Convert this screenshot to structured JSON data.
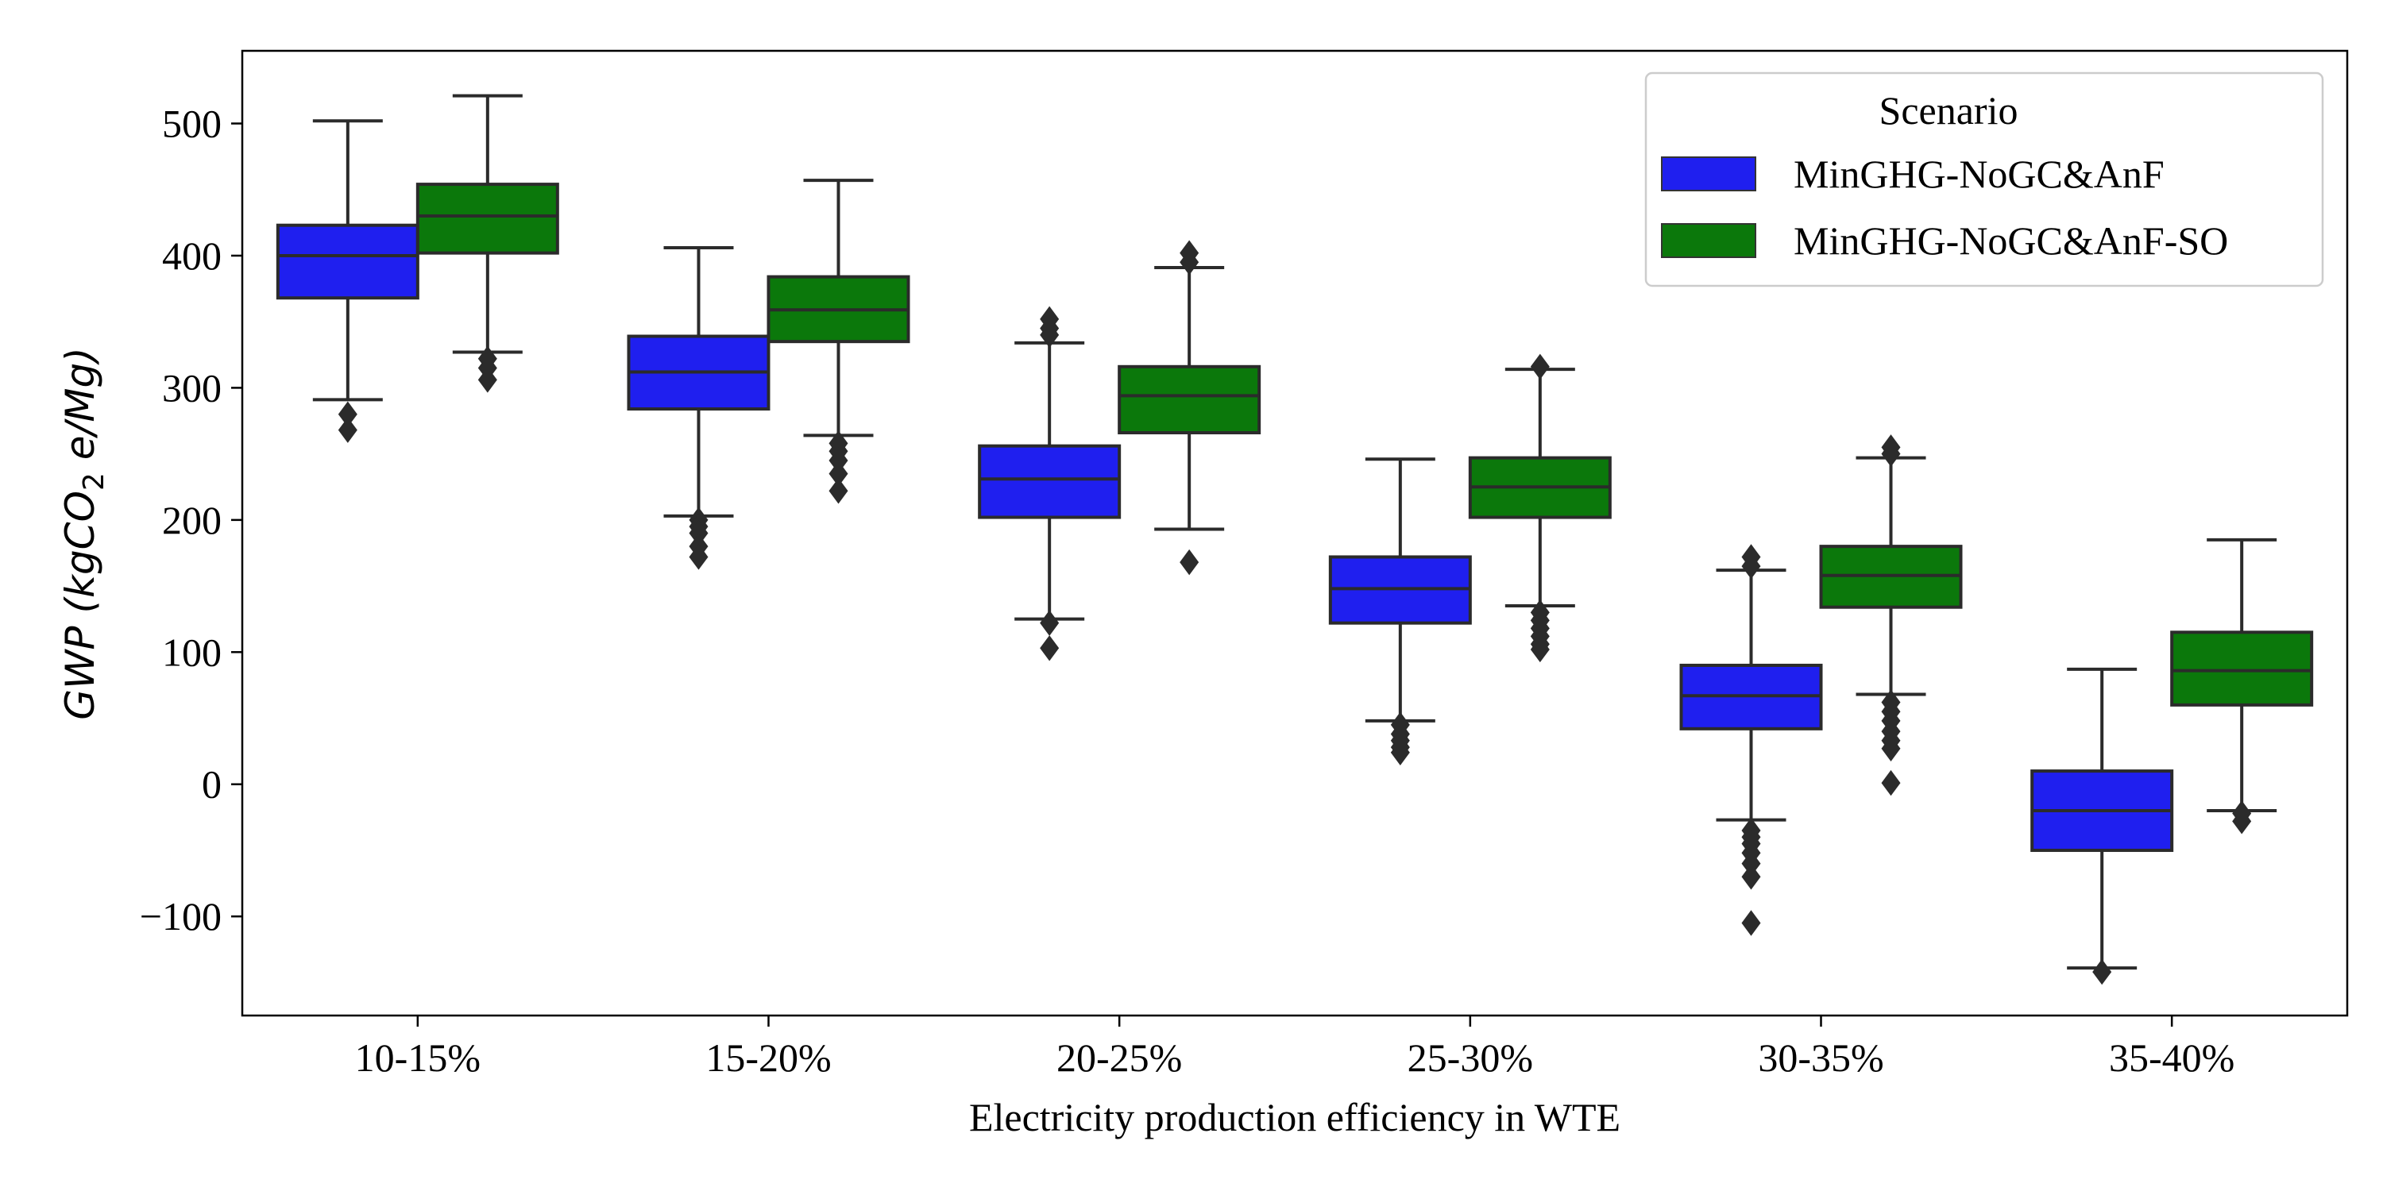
{
  "chart_data": {
    "type": "box",
    "xlabel": "Electricity production efficiency in WTE",
    "ylabel": {
      "italic_pre": "GWP (kgCO",
      "sub": "2",
      "italic_post": " e/Mg)"
    },
    "ylim": [
      -175,
      555
    ],
    "yticks": [
      500,
      400,
      300,
      200,
      100,
      0,
      -100
    ],
    "ytick_labels": [
      "500",
      "400",
      "300",
      "200",
      "100",
      "0",
      "−100"
    ],
    "categories": [
      "10-15%",
      "15-20%",
      "20-25%",
      "25-30%",
      "30-35%",
      "35-40%"
    ],
    "legend": {
      "title": "Scenario",
      "position": "top-right"
    },
    "series": [
      {
        "name": "MinGHG-NoGC&AnF",
        "color": "#1f1fef",
        "boxes": [
          {
            "whislo": 291,
            "q1": 368,
            "med": 400,
            "q3": 423,
            "whishi": 502,
            "fliers": [
              280,
              268
            ]
          },
          {
            "whislo": 203,
            "q1": 284,
            "med": 312,
            "q3": 339,
            "whishi": 406,
            "fliers": [
              200,
              195,
              190,
              180,
              172
            ]
          },
          {
            "whislo": 125,
            "q1": 202,
            "med": 231,
            "q3": 256,
            "whishi": 334,
            "fliers": [
              352,
              345,
              340,
              122,
              103
            ]
          },
          {
            "whislo": 48,
            "q1": 122,
            "med": 148,
            "q3": 172,
            "whishi": 246,
            "fliers": [
              45,
              38,
              33,
              28,
              24
            ]
          },
          {
            "whislo": -27,
            "q1": 42,
            "med": 67,
            "q3": 90,
            "whishi": 162,
            "fliers": [
              172,
              165,
              -35,
              -40,
              -45,
              -52,
              -60,
              -70,
              -105
            ]
          },
          {
            "whislo": -139,
            "q1": -50,
            "med": -20,
            "q3": 10,
            "whishi": 87,
            "fliers": [
              -142
            ]
          }
        ]
      },
      {
        "name": "MinGHG-NoGC&AnF-SO",
        "color": "#0b780b",
        "boxes": [
          {
            "whislo": 327,
            "q1": 402,
            "med": 430,
            "q3": 454,
            "whishi": 521,
            "fliers": [
              322,
              315,
              306
            ]
          },
          {
            "whislo": 264,
            "q1": 335,
            "med": 359,
            "q3": 384,
            "whishi": 457,
            "fliers": [
              258,
              252,
              245,
              235,
              222
            ]
          },
          {
            "whislo": 193,
            "q1": 266,
            "med": 294,
            "q3": 316,
            "whishi": 391,
            "fliers": [
              402,
              395,
              168
            ]
          },
          {
            "whislo": 135,
            "q1": 202,
            "med": 225,
            "q3": 247,
            "whishi": 314,
            "fliers": [
              316,
              130,
              124,
              118,
              112,
              106,
              102
            ]
          },
          {
            "whislo": 68,
            "q1": 134,
            "med": 158,
            "q3": 180,
            "whishi": 247,
            "fliers": [
              255,
              250,
              62,
              55,
              48,
              40,
              33,
              27,
              1
            ]
          },
          {
            "whislo": -20,
            "q1": 60,
            "med": 86,
            "q3": 115,
            "whishi": 185,
            "fliers": [
              -22,
              -28
            ]
          }
        ]
      }
    ]
  }
}
